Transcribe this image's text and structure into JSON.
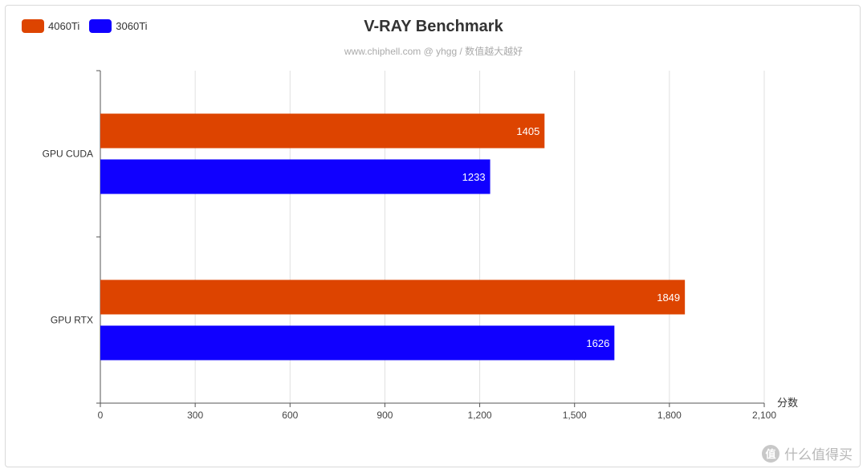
{
  "header": {
    "title": "V-RAY Benchmark",
    "subtitle": "www.chiphell.com @ yhgg / 数值越大越好"
  },
  "legend": [
    {
      "label": "4060Ti",
      "color": "#dd4400"
    },
    {
      "label": "3060Ti",
      "color": "#1000ff"
    }
  ],
  "watermark": {
    "text": "什么值得买",
    "logo": "值"
  },
  "chart_data": {
    "type": "bar",
    "orientation": "horizontal",
    "title": "V-RAY Benchmark",
    "subtitle": "www.chiphell.com @ yhgg / 数值越大越好",
    "categories": [
      "GPU CUDA",
      "GPU RTX"
    ],
    "series": [
      {
        "name": "4060Ti",
        "color": "#dd4400",
        "values": [
          1405,
          1849
        ]
      },
      {
        "name": "3060Ti",
        "color": "#1000ff",
        "values": [
          1233,
          1626
        ]
      }
    ],
    "xlabel": "分数",
    "xlim": [
      0,
      2100
    ],
    "xticks": [
      0,
      300,
      600,
      900,
      1200,
      1500,
      1800,
      2100
    ],
    "xtick_labels": [
      "0",
      "300",
      "600",
      "900",
      "1,200",
      "1,500",
      "1,800",
      "2,100"
    ],
    "grid": true,
    "legend_position": "top-left",
    "data_labels": true
  }
}
